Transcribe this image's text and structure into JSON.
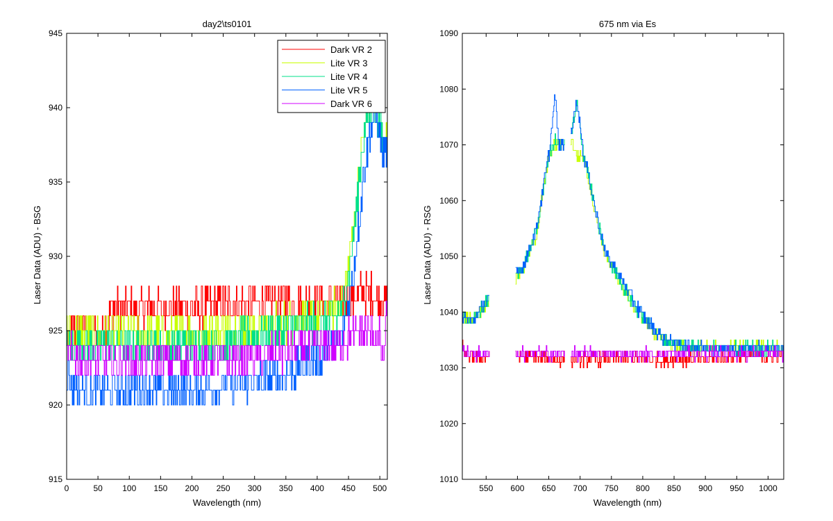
{
  "colors": {
    "dark_vr2": "#ff0000",
    "lite_vr3": "#c8ff00",
    "lite_vr4": "#00e08a",
    "lite_vr5": "#0060ff",
    "dark_vr6": "#d000ff"
  },
  "chart_data": [
    {
      "type": "line",
      "title": "day2\\ts0101",
      "xlabel": "Wavelength (nm)",
      "ylabel": "Laser Data (ADU) - BSG",
      "xlim": [
        0,
        512
      ],
      "ylim": [
        915,
        945
      ],
      "xticks": [
        0,
        50,
        100,
        150,
        200,
        250,
        300,
        350,
        400,
        450,
        500
      ],
      "yticks": [
        915,
        920,
        925,
        930,
        935,
        940,
        945
      ],
      "grid": false,
      "legend_position": "top-right",
      "series": [
        {
          "name": "Dark VR 2",
          "color": "#ff0000",
          "x": [
            0,
            10,
            60,
            70,
            100,
            200,
            250,
            300,
            350,
            400,
            430,
            450,
            470,
            490,
            500,
            505,
            510,
            512
          ],
          "y": [
            924,
            925,
            925,
            926.5,
            926.5,
            926.5,
            926.8,
            926.8,
            927,
            927,
            927,
            927,
            927.5,
            927.5,
            927,
            927,
            927,
            927
          ]
        },
        {
          "name": "Lite VR 3",
          "color": "#c8ff00",
          "x": [
            0,
            10,
            50,
            100,
            150,
            200,
            250,
            300,
            350,
            400,
            430,
            440,
            450,
            460,
            470,
            480,
            490,
            500,
            505,
            510,
            512
          ],
          "y": [
            925,
            924.8,
            924.8,
            924.8,
            924.8,
            924.8,
            925,
            925.2,
            925.5,
            926,
            926.5,
            927,
            929.5,
            933,
            937,
            940,
            940.5,
            940,
            937,
            938,
            937
          ]
        },
        {
          "name": "Lite VR 4",
          "color": "#00e08a",
          "x": [
            0,
            10,
            50,
            100,
            150,
            200,
            250,
            300,
            350,
            400,
            430,
            440,
            450,
            460,
            470,
            480,
            490,
            500,
            505,
            510,
            512
          ],
          "y": [
            924,
            924,
            924,
            924,
            924,
            924,
            924.2,
            924.5,
            925,
            925.5,
            926,
            926.5,
            929,
            932.5,
            936.5,
            939.5,
            940,
            939.5,
            937,
            937.5,
            936.5
          ]
        },
        {
          "name": "Lite VR 5",
          "color": "#0060ff",
          "x": [
            0,
            5,
            10,
            30,
            60,
            100,
            150,
            200,
            250,
            300,
            350,
            400,
            430,
            445,
            455,
            465,
            475,
            485,
            495,
            505,
            510,
            512
          ],
          "y": [
            922.5,
            921.5,
            921.2,
            921,
            921,
            921,
            921,
            921,
            921.3,
            921.5,
            922,
            923,
            924,
            925.5,
            928,
            932,
            936,
            938.5,
            939.5,
            936.5,
            937.5,
            936.5
          ]
        },
        {
          "name": "Dark VR 6",
          "color": "#d000ff",
          "x": [
            0,
            20,
            50,
            100,
            150,
            200,
            250,
            300,
            350,
            400,
            430,
            450,
            470,
            490,
            500,
            505,
            510,
            512
          ],
          "y": [
            923.5,
            923,
            923,
            923,
            923,
            923,
            923,
            923.3,
            923.5,
            924,
            924,
            924.5,
            924.8,
            924.8,
            924.5,
            922.5,
            925.5,
            925
          ]
        }
      ]
    },
    {
      "type": "line",
      "title": "675 nm via Es",
      "xlabel": "Wavelength (nm)",
      "ylabel": "Laser Data (ADU) - RSG",
      "xlim": [
        512,
        1025
      ],
      "ylim": [
        1010,
        1090
      ],
      "xticks": [
        550,
        600,
        650,
        700,
        750,
        800,
        850,
        900,
        950,
        1000
      ],
      "yticks": [
        1010,
        1020,
        1030,
        1040,
        1050,
        1060,
        1070,
        1080,
        1090
      ],
      "grid": false,
      "series": [
        {
          "name": "Dark VR 2",
          "color": "#ff0000",
          "x": [
            512,
            515,
            520,
            550,
            600,
            650,
            700,
            750,
            800,
            850,
            900,
            950,
            1000,
            1025
          ],
          "y": [
            1034,
            1033,
            1032,
            1032,
            1032,
            1031.5,
            1031.5,
            1031.5,
            1031.5,
            1031.5,
            1031.5,
            1032,
            1032,
            1032.5
          ]
        },
        {
          "name": "Lite VR 3",
          "color": "#c8ff00",
          "x": [
            515,
            530,
            550,
            600,
            610,
            630,
            650,
            660,
            665,
            670,
            675,
            685,
            695,
            705,
            715,
            725,
            740,
            755,
            770,
            790,
            810,
            830,
            850,
            870,
            900,
            950,
            1000,
            1025
          ],
          "y": [
            1039,
            1038.5,
            1041.5,
            1046.5,
            1048,
            1054,
            1068,
            1070,
            1070,
            1070,
            1070,
            1071,
            1068,
            1068,
            1063,
            1057,
            1050,
            1047,
            1044,
            1040,
            1037.5,
            1035,
            1034,
            1033.5,
            1033.5,
            1033.5,
            1033.5,
            1033.5
          ]
        },
        {
          "name": "Lite VR 4",
          "color": "#00e08a",
          "x": [
            515,
            530,
            550,
            600,
            610,
            630,
            650,
            660,
            665,
            670,
            675,
            685,
            695,
            705,
            715,
            725,
            740,
            755,
            770,
            790,
            810,
            830,
            850,
            870,
            900,
            950,
            1000,
            1025
          ],
          "y": [
            1039,
            1038.5,
            1042,
            1047,
            1048.5,
            1054.5,
            1068.5,
            1070.5,
            1070,
            1070,
            1070,
            1071.5,
            1077,
            1068.5,
            1063.5,
            1057.5,
            1050.5,
            1047.5,
            1044.5,
            1040.5,
            1038,
            1035.5,
            1034.5,
            1034,
            1033.5,
            1033.5,
            1033.5,
            1033.5
          ]
        },
        {
          "name": "Lite VR 5",
          "color": "#0060ff",
          "x": [
            515,
            530,
            550,
            600,
            610,
            630,
            650,
            660,
            665,
            670,
            675,
            685,
            695,
            705,
            715,
            725,
            740,
            755,
            770,
            790,
            810,
            830,
            850,
            870,
            900,
            950,
            1000,
            1025
          ],
          "y": [
            1039,
            1038.5,
            1042,
            1047,
            1048.5,
            1055,
            1068.5,
            1079,
            1070,
            1070,
            1070,
            1072,
            1078,
            1068.5,
            1063.5,
            1058,
            1050.5,
            1048,
            1045,
            1041,
            1038,
            1035.5,
            1034.5,
            1034,
            1033.5,
            1033.5,
            1033.5,
            1033.5
          ]
        },
        {
          "name": "Dark VR 6",
          "color": "#d000ff",
          "x": [
            512,
            515,
            520,
            550,
            600,
            650,
            700,
            750,
            800,
            850,
            900,
            950,
            1000,
            1025
          ],
          "y": [
            1034,
            1033,
            1032.5,
            1032.5,
            1032.5,
            1032.5,
            1032.5,
            1032.5,
            1032.5,
            1032.5,
            1032.5,
            1032.5,
            1032.5,
            1032.5
          ]
        }
      ],
      "gaps": [
        [
          555,
          597
        ],
        [
          675,
          685
        ]
      ]
    }
  ]
}
